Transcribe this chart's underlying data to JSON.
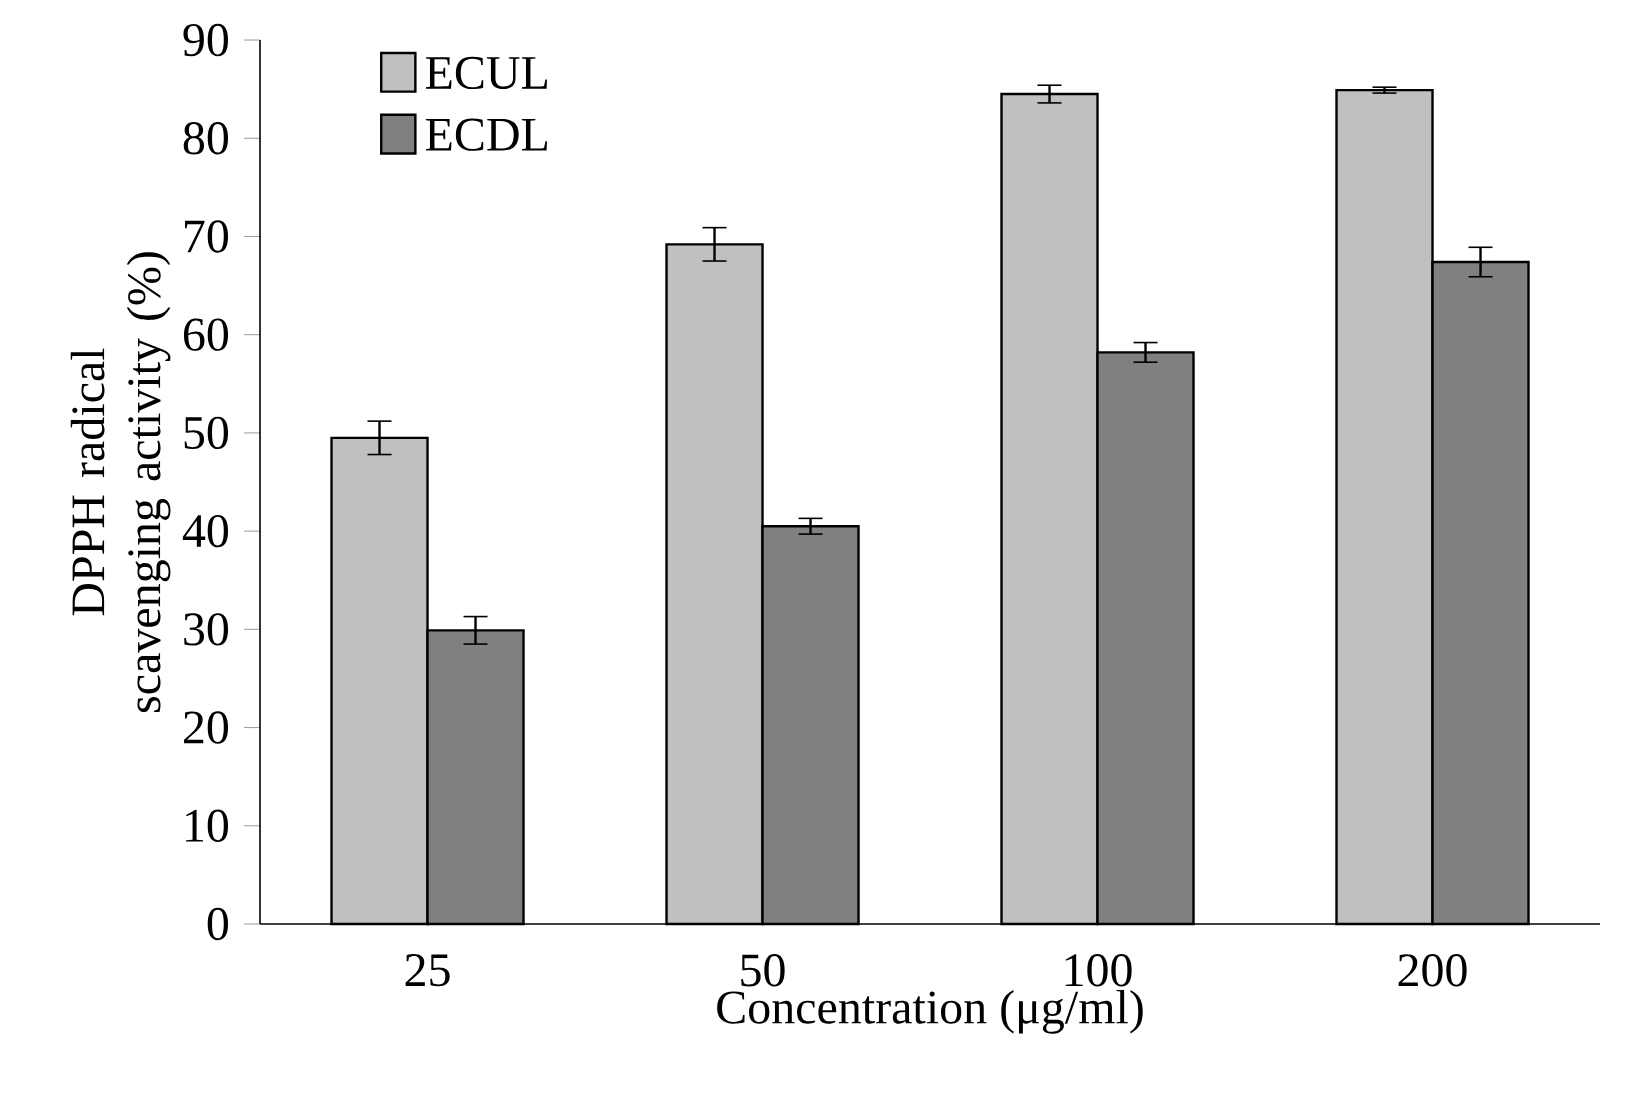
{
  "chart_data": {
    "type": "bar",
    "xlabel": "Concentration (μg/ml)",
    "ylabel": "DPPH radical scavenging activity (%)",
    "categories": [
      "25",
      "50",
      "100",
      "200"
    ],
    "series": [
      {
        "name": "ECUL",
        "color": "#c0c0c0",
        "values": [
          49.5,
          69.2,
          84.5,
          84.9
        ],
        "errors": [
          1.7,
          1.7,
          0.9,
          0.3
        ]
      },
      {
        "name": "ECDL",
        "color": "#808080",
        "values": [
          29.9,
          40.5,
          58.2,
          67.4
        ],
        "errors": [
          1.4,
          0.8,
          1.0,
          1.5
        ]
      }
    ],
    "ylim": [
      0,
      90
    ],
    "yticks": [
      0,
      10,
      20,
      30,
      40,
      50,
      60,
      70,
      80,
      90
    ],
    "legend": "top left",
    "grid": false
  }
}
